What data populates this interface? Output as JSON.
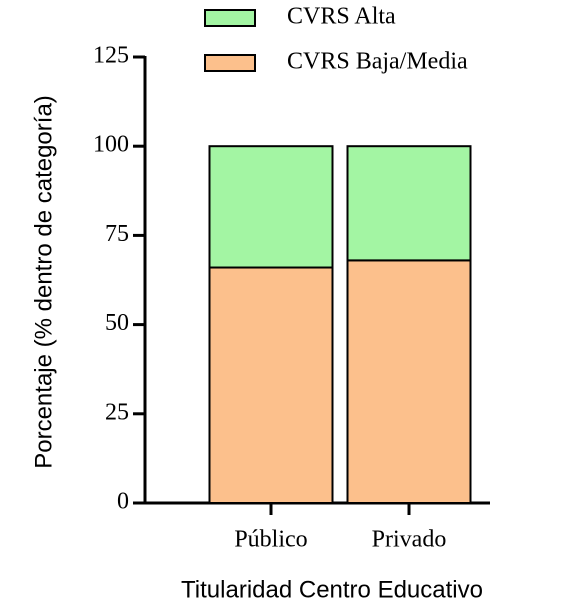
{
  "chart_data": {
    "type": "stacked_bar",
    "x_label": "Titularidad Centro Educativo",
    "y_label": "Porcentaje (% dentro de categoría)",
    "categories": [
      "Público",
      "Privado"
    ],
    "series": [
      {
        "name": "CVRS Alta",
        "color": "#a3f5a3",
        "values": [
          34,
          32
        ]
      },
      {
        "name": "CVRS Baja/Media",
        "color": "#fcc08c",
        "values": [
          66,
          68
        ]
      }
    ],
    "ylim": [
      0,
      125
    ],
    "yticks": [
      0,
      25,
      50,
      75,
      100,
      125
    ]
  }
}
